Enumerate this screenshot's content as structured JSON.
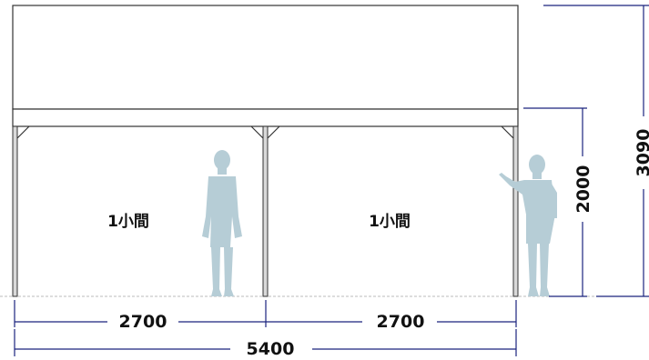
{
  "bays": [
    {
      "label": "1小間"
    },
    {
      "label": "1小間"
    }
  ],
  "dimensions": {
    "bay_width_left": "2700",
    "bay_width_right": "2700",
    "total_width": "5400",
    "clear_height": "2000",
    "total_height": "3090"
  },
  "colors": {
    "structure_line": "#333333",
    "dimension_line": "#1a237e",
    "ground_line": "#bbbbbb",
    "human_silhouette": "#b6cdd6",
    "post_fill": "#d9d9d9"
  }
}
